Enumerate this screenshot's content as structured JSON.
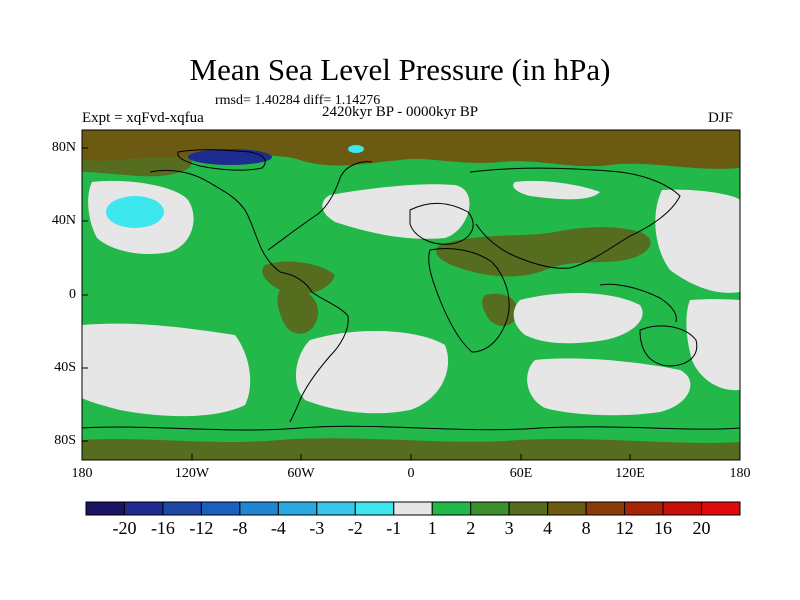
{
  "title": "Mean Sea Level Pressure (in hPa)",
  "stats": "rmsd= 1.40284 diff= 1.14276",
  "experiment": "Expt = xqFvd-xqfua",
  "period": "2420kyr BP - 0000kyr BP",
  "season": "DJF",
  "lat_labels": [
    "80N",
    "40N",
    "0",
    "40S",
    "80S"
  ],
  "lon_labels": [
    "180",
    "120W",
    "60W",
    "0",
    "60E",
    "120E",
    "180"
  ],
  "colorbar": {
    "labels": [
      "-20",
      "-16",
      "-12",
      "-8",
      "-4",
      "-3",
      "-2",
      "-1",
      "1",
      "2",
      "3",
      "4",
      "8",
      "12",
      "16",
      "20"
    ],
    "colors": [
      "#1a1563",
      "#1d2c8e",
      "#1f47a8",
      "#1b5fc0",
      "#1e86d2",
      "#2aa9e0",
      "#38c7ea",
      "#3ee6ee",
      "#e6e6e6",
      "#22b84a",
      "#3c8f2c",
      "#566c1e",
      "#6b5a12",
      "#8a3c0a",
      "#a82306",
      "#c41008",
      "#dd0b0b"
    ]
  },
  "legend_colors": {
    "neutral": "#e6e6e6",
    "pos1": "#22b84a",
    "pos2": "#3c8f2c",
    "pos3": "#566c1e",
    "pos4": "#6b5a12",
    "neg_light": "#3ee6ee",
    "neg_dark": "#1d2c8e"
  }
}
